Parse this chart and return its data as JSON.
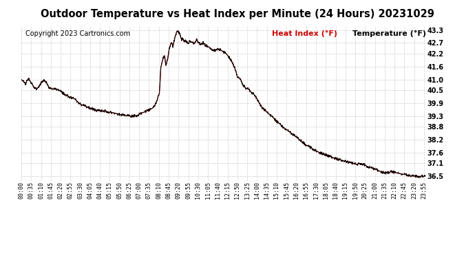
{
  "title": "Outdoor Temperature vs Heat Index per Minute (24 Hours) 20231029",
  "copyright": "Copyright 2023 Cartronics.com",
  "legend_heat": "Heat Index (°F)",
  "legend_temp": "Temperature (°F)",
  "background_color": "#ffffff",
  "grid_color": "#cccccc",
  "line_color_heat": "#cc0000",
  "line_color_temp": "#000000",
  "title_fontsize": 10.5,
  "copyright_fontsize": 7,
  "legend_fontsize": 8,
  "tick_fontsize": 6,
  "ytick_fontsize": 7,
  "ylim": [
    36.3,
    43.5
  ],
  "yticks": [
    36.5,
    37.1,
    37.6,
    38.2,
    38.8,
    39.3,
    39.9,
    40.5,
    41.0,
    41.6,
    42.2,
    42.7,
    43.3
  ],
  "num_minutes": 1440,
  "xtick_labels": [
    "00:00",
    "00:35",
    "01:10",
    "01:45",
    "02:20",
    "02:55",
    "03:30",
    "04:05",
    "04:40",
    "05:15",
    "05:50",
    "06:25",
    "07:00",
    "07:35",
    "08:10",
    "08:45",
    "09:20",
    "09:55",
    "10:30",
    "11:05",
    "11:40",
    "12:15",
    "12:50",
    "13:25",
    "14:00",
    "14:35",
    "15:10",
    "15:45",
    "16:20",
    "16:55",
    "17:30",
    "18:05",
    "18:40",
    "19:15",
    "19:50",
    "20:25",
    "21:00",
    "21:35",
    "22:10",
    "22:45",
    "23:20",
    "23:55"
  ],
  "keypoints": [
    [
      0,
      41.0
    ],
    [
      15,
      40.8
    ],
    [
      25,
      41.05
    ],
    [
      35,
      40.85
    ],
    [
      45,
      40.65
    ],
    [
      55,
      40.55
    ],
    [
      65,
      40.75
    ],
    [
      80,
      41.0
    ],
    [
      90,
      40.85
    ],
    [
      100,
      40.6
    ],
    [
      110,
      40.55
    ],
    [
      130,
      40.55
    ],
    [
      150,
      40.35
    ],
    [
      170,
      40.2
    ],
    [
      190,
      40.1
    ],
    [
      210,
      39.85
    ],
    [
      230,
      39.75
    ],
    [
      250,
      39.65
    ],
    [
      270,
      39.55
    ],
    [
      290,
      39.55
    ],
    [
      310,
      39.5
    ],
    [
      330,
      39.45
    ],
    [
      350,
      39.38
    ],
    [
      370,
      39.32
    ],
    [
      390,
      39.3
    ],
    [
      410,
      39.32
    ],
    [
      430,
      39.45
    ],
    [
      450,
      39.55
    ],
    [
      465,
      39.65
    ],
    [
      475,
      39.75
    ],
    [
      485,
      40.1
    ],
    [
      492,
      40.35
    ],
    [
      497,
      41.55
    ],
    [
      502,
      41.85
    ],
    [
      510,
      42.15
    ],
    [
      515,
      41.65
    ],
    [
      520,
      41.88
    ],
    [
      528,
      42.5
    ],
    [
      535,
      42.75
    ],
    [
      540,
      42.55
    ],
    [
      548,
      43.0
    ],
    [
      555,
      43.28
    ],
    [
      560,
      43.2
    ],
    [
      565,
      43.1
    ],
    [
      570,
      42.85
    ],
    [
      575,
      42.9
    ],
    [
      580,
      42.75
    ],
    [
      585,
      42.85
    ],
    [
      590,
      42.72
    ],
    [
      595,
      42.65
    ],
    [
      600,
      42.8
    ],
    [
      610,
      42.72
    ],
    [
      618,
      42.68
    ],
    [
      625,
      42.85
    ],
    [
      632,
      42.72
    ],
    [
      640,
      42.62
    ],
    [
      648,
      42.72
    ],
    [
      655,
      42.6
    ],
    [
      663,
      42.55
    ],
    [
      670,
      42.5
    ],
    [
      680,
      42.4
    ],
    [
      690,
      42.35
    ],
    [
      700,
      42.45
    ],
    [
      710,
      42.38
    ],
    [
      720,
      42.28
    ],
    [
      730,
      42.2
    ],
    [
      740,
      42.05
    ],
    [
      750,
      41.82
    ],
    [
      760,
      41.55
    ],
    [
      770,
      41.1
    ],
    [
      780,
      41.05
    ],
    [
      790,
      40.75
    ],
    [
      800,
      40.6
    ],
    [
      810,
      40.55
    ],
    [
      820,
      40.4
    ],
    [
      830,
      40.3
    ],
    [
      840,
      40.1
    ],
    [
      850,
      39.85
    ],
    [
      860,
      39.65
    ],
    [
      870,
      39.55
    ],
    [
      880,
      39.42
    ],
    [
      890,
      39.32
    ],
    [
      900,
      39.2
    ],
    [
      910,
      39.05
    ],
    [
      920,
      38.95
    ],
    [
      930,
      38.82
    ],
    [
      940,
      38.72
    ],
    [
      950,
      38.62
    ],
    [
      960,
      38.52
    ],
    [
      970,
      38.42
    ],
    [
      980,
      38.32
    ],
    [
      990,
      38.22
    ],
    [
      1000,
      38.12
    ],
    [
      1015,
      37.95
    ],
    [
      1030,
      37.85
    ],
    [
      1045,
      37.72
    ],
    [
      1060,
      37.62
    ],
    [
      1080,
      37.52
    ],
    [
      1100,
      37.42
    ],
    [
      1120,
      37.32
    ],
    [
      1150,
      37.22
    ],
    [
      1175,
      37.12
    ],
    [
      1195,
      37.05
    ],
    [
      1210,
      37.1
    ],
    [
      1220,
      37.05
    ],
    [
      1230,
      36.98
    ],
    [
      1240,
      36.92
    ],
    [
      1250,
      36.88
    ],
    [
      1260,
      36.82
    ],
    [
      1270,
      36.78
    ],
    [
      1280,
      36.72
    ],
    [
      1290,
      36.68
    ],
    [
      1300,
      36.65
    ],
    [
      1310,
      36.68
    ],
    [
      1320,
      36.72
    ],
    [
      1330,
      36.68
    ],
    [
      1340,
      36.65
    ],
    [
      1350,
      36.62
    ],
    [
      1360,
      36.6
    ],
    [
      1370,
      36.58
    ],
    [
      1380,
      36.55
    ],
    [
      1390,
      36.52
    ],
    [
      1400,
      36.5
    ],
    [
      1410,
      36.5
    ],
    [
      1420,
      36.5
    ],
    [
      1430,
      36.5
    ],
    [
      1439,
      36.5
    ]
  ]
}
